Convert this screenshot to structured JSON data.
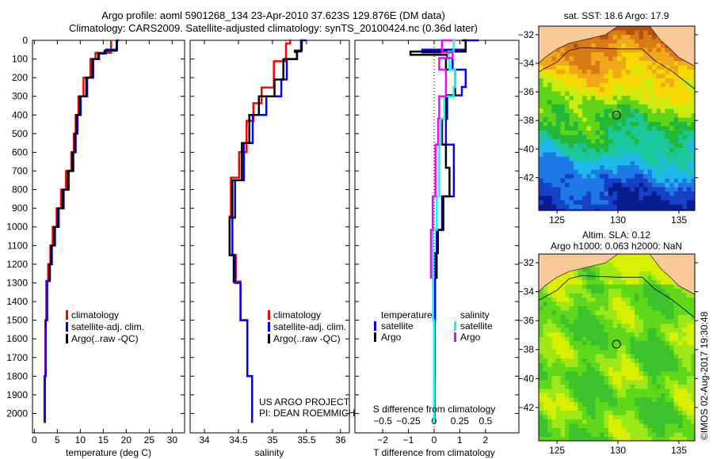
{
  "title": {
    "line1": "Argo profile: aoml 5901268_134 23-Apr-2010 37.623S 129.876E (DM data)",
    "line2": "Climatology: CARS2009. Satellite-adjusted climatology: synTS_20100424.nc (0.36d later)"
  },
  "colors": {
    "climatology": "#ff0000",
    "satellite": "#0000ff",
    "argo": "#000000",
    "sal_satellite": "#00ffff",
    "sal_argo": "#ff00ff",
    "land": "#f9c99a"
  },
  "depth_axis": {
    "ticks": [
      0,
      100,
      200,
      300,
      400,
      500,
      600,
      700,
      800,
      900,
      1000,
      1100,
      1200,
      1300,
      1400,
      1500,
      1600,
      1700,
      1800,
      1900,
      2000
    ],
    "range": [
      0,
      2104
    ]
  },
  "credit": {
    "line1": "US ARGO PROJECT",
    "line2": "PI: DEAN ROEMMICH"
  },
  "watermark": "©IMOS 02-Aug-2017 19:30:48",
  "chart_data": [
    {
      "type": "line",
      "title": "",
      "xlabel": "temperature (deg C)",
      "ylabel": "depth",
      "xlim": [
        -0.4,
        32.7
      ],
      "xticks": [
        0,
        5,
        10,
        15,
        20,
        25,
        30
      ],
      "legend": [
        "climatology",
        "satellite-adj. clim.",
        "Argo(..raw -QC)"
      ],
      "series": [
        {
          "name": "climatology",
          "color": "#ff0000",
          "depth": [
            0,
            67,
            100,
            200,
            300,
            400,
            500,
            600,
            700,
            800,
            900,
            1000,
            1100,
            1200,
            1290,
            1500,
            1800,
            2050
          ],
          "values": [
            16.7,
            16.7,
            13.3,
            12.2,
            10.7,
            9.6,
            9.0,
            8.6,
            8.05,
            6.9,
            5.8,
            4.85,
            4.0,
            3.5,
            3.0,
            2.6,
            2.4,
            2.2
          ]
        },
        {
          "name": "satellite-adj. clim.",
          "color": "#0000ff",
          "depth": [
            0,
            50,
            70,
            100,
            200,
            300,
            400,
            500,
            600,
            700,
            800,
            900,
            1000,
            1100,
            1200,
            1290,
            1500,
            1800,
            2050
          ],
          "values": [
            18.4,
            18.0,
            15.6,
            14.1,
            12.8,
            11.5,
            10.1,
            9.4,
            9.0,
            8.5,
            7.5,
            6.4,
            5.3,
            4.5,
            3.8,
            3.4,
            2.8,
            2.5,
            2.3
          ]
        },
        {
          "name": "Argo(..raw -QC)",
          "color": "#000000",
          "depth": [
            0,
            55,
            70,
            100,
            200,
            300,
            400,
            500,
            600,
            700,
            800,
            900,
            1000,
            1100,
            1200,
            1290
          ],
          "values": [
            17.9,
            17.9,
            15.3,
            13.9,
            12.6,
            11.3,
            9.9,
            9.2,
            8.8,
            8.3,
            7.3,
            6.2,
            5.1,
            4.3,
            3.7,
            3.3
          ]
        }
      ]
    },
    {
      "type": "line",
      "title": "",
      "xlabel": "salinity",
      "ylabel": "depth",
      "xlim": [
        33.79,
        36.13
      ],
      "xticks": [
        34,
        34.5,
        35,
        35.5,
        36
      ],
      "legend": [
        "climatology",
        "satellite-adj. clim.",
        "Argo(..raw -QC)"
      ],
      "series": [
        {
          "name": "climatology",
          "color": "#ff0000",
          "depth": [
            0,
            17,
            112,
            253,
            337,
            432,
            599,
            736,
            944,
            1152,
            1293,
            1500,
            1800,
            2050
          ],
          "values": [
            35.27,
            35.26,
            35.2,
            35.02,
            34.84,
            34.72,
            34.62,
            34.51,
            34.39,
            34.37,
            34.46,
            34.53,
            34.63,
            34.7
          ]
        },
        {
          "name": "satellite-adj. clim.",
          "color": "#0000ff",
          "depth": [
            0,
            60,
            100,
            210,
            300,
            400,
            550,
            750,
            950,
            1150,
            1300,
            1500,
            1800,
            2050
          ],
          "values": [
            35.5,
            35.42,
            35.36,
            35.21,
            35.13,
            34.91,
            34.71,
            34.58,
            34.45,
            34.41,
            34.45,
            34.53,
            34.63,
            34.7
          ]
        },
        {
          "name": "Argo(..raw -QC)",
          "color": "#000000",
          "depth": [
            0,
            55,
            62,
            100,
            210,
            300,
            400,
            550,
            750,
            950,
            1150,
            1300
          ],
          "values": [
            35.43,
            35.43,
            35.33,
            35.36,
            35.16,
            35.03,
            34.8,
            34.66,
            34.55,
            34.41,
            34.37,
            34.43
          ]
        }
      ]
    },
    {
      "type": "line",
      "title": "",
      "xlabel": "T difference from climatology",
      "x2label": "S difference from climatology",
      "ylabel": "depth",
      "xlim": [
        -3.08,
        3.3
      ],
      "xticks": [
        -2,
        -1,
        0,
        1,
        2
      ],
      "x2ticks": [
        -0.5,
        -0.25,
        0,
        0.25,
        0.5
      ],
      "s_to_t_scale": 4,
      "legend_headers": [
        "temperature",
        "salinity"
      ],
      "legend": [
        "satellite",
        "Argo",
        "satellite",
        "Argo"
      ],
      "series": [
        {
          "name": "T satellite",
          "group": "temperature",
          "color": "#0000ff",
          "depth": [
            0,
            50,
            65,
            95,
            157,
            250,
            295,
            420,
            559,
            683,
            836,
            1016,
            1140,
            1278,
            1500,
            1800,
            2050
          ],
          "values": [
            1.74,
            1.23,
            -0.46,
            0.56,
            0.72,
            1.23,
            1.08,
            0.51,
            0.46,
            0.77,
            0.77,
            0.31,
            0.1,
            0.05,
            0.04,
            0.03,
            0.02
          ]
        },
        {
          "name": "T Argo",
          "group": "temperature",
          "color": "#000000",
          "depth": [
            0,
            60,
            77,
            95,
            157,
            295,
            420,
            559,
            683,
            836,
            1016,
            1140,
            1278
          ],
          "values": [
            1.08,
            1.23,
            -0.92,
            0.51,
            0.46,
            0.82,
            0.46,
            0.31,
            0.46,
            0.6,
            0.36,
            0.15,
            0.1
          ]
        },
        {
          "name": "S satellite",
          "group": "salinity",
          "color": "#00ffff",
          "depth": [
            0,
            60,
            95,
            157,
            250,
            300,
            420,
            559,
            836,
            1016,
            1278,
            1500,
            1800,
            2050
          ],
          "values": [
            0.064,
            0.19,
            0.14,
            0.15,
            0.205,
            0.19,
            0.1,
            0.064,
            0.05,
            0.026,
            -0.013,
            -0.01,
            0,
            0
          ]
        },
        {
          "name": "S Argo",
          "group": "salinity",
          "color": "#ff00ff",
          "depth": [
            0,
            65,
            95,
            157,
            250,
            300,
            420,
            559,
            836,
            1016,
            1278
          ],
          "values": [
            0.18,
            0.077,
            0.18,
            0.05,
            0.115,
            0.115,
            0.05,
            0.04,
            0.013,
            -0.013,
            -0.03
          ]
        }
      ]
    },
    {
      "type": "heatmap",
      "title": "sat. SST: 18.6 Argo: 17.9",
      "xlim": [
        123.5,
        136.3
      ],
      "ylim": [
        -44.3,
        -31.4
      ],
      "xticks": [
        125,
        130,
        135
      ],
      "yticks": [
        -32,
        -34,
        -36,
        -38,
        -40,
        -42
      ],
      "marker": {
        "lon": 129.876,
        "lat": -37.623
      }
    },
    {
      "type": "heatmap",
      "title": "Altim. SLA: 0.12",
      "subtitle": "Argo h1000: 0.063 h2000: NaN",
      "xlim": [
        123.5,
        136.3
      ],
      "ylim": [
        -44.3,
        -31.4
      ],
      "xticks": [
        125,
        130,
        135
      ],
      "yticks": [
        -32,
        -34,
        -36,
        -38,
        -40,
        -42
      ],
      "marker": {
        "lon": 129.876,
        "lat": -37.623
      }
    }
  ]
}
